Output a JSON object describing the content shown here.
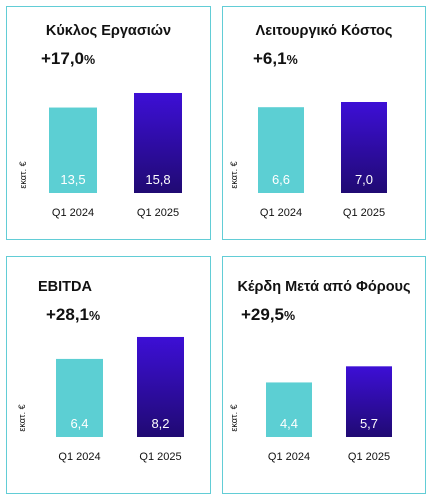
{
  "colors": {
    "border": "#62cdd6",
    "bar_2024": "#5ccfd3",
    "bar_2025_top": "#3d0fd6",
    "bar_2025_bottom": "#200a73",
    "text": "#111111",
    "value_label": "#ffffff"
  },
  "chart_data": [
    {
      "type": "bar",
      "title": "Κύκλος Εργασιών",
      "growth": {
        "value": "+17,0",
        "unit": "%"
      },
      "ylabel": "εκατ. €",
      "categories": [
        "Q1 2024",
        "Q1 2025"
      ],
      "values": [
        13.5,
        15.8
      ],
      "value_labels": [
        "13,5",
        "15,8"
      ]
    },
    {
      "type": "bar",
      "title": "Λειτουργικό Κόστος",
      "growth": {
        "value": "+6,1",
        "unit": "%"
      },
      "ylabel": "εκατ. €",
      "categories": [
        "Q1 2024",
        "Q1 2025"
      ],
      "values": [
        6.6,
        7.0
      ],
      "value_labels": [
        "6,6",
        "7,0"
      ]
    },
    {
      "type": "bar",
      "title": "EBITDA",
      "growth": {
        "value": "+28,1",
        "unit": "%"
      },
      "ylabel": "εκατ. €",
      "categories": [
        "Q1 2024",
        "Q1 2025"
      ],
      "values": [
        6.4,
        8.2
      ],
      "value_labels": [
        "6,4",
        "8,2"
      ]
    },
    {
      "type": "bar",
      "title": "Κέρδη Μετά από Φόρους",
      "growth": {
        "value": "+29,5",
        "unit": "%"
      },
      "ylabel": "εκατ. €",
      "categories": [
        "Q1 2024",
        "Q1 2025"
      ],
      "values": [
        4.4,
        5.7
      ],
      "value_labels": [
        "4,4",
        "5,7"
      ]
    }
  ]
}
